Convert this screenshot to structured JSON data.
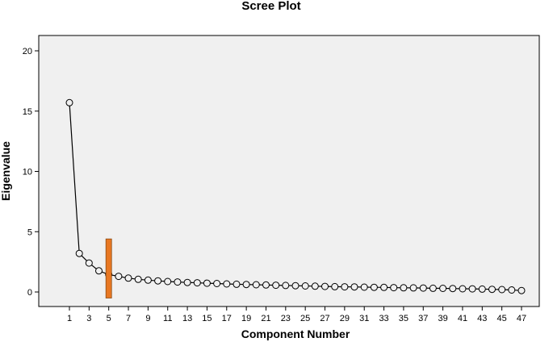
{
  "chart_data": {
    "type": "line",
    "title": "Scree Plot",
    "xlabel": "Component Number",
    "ylabel": "Eigenvalue",
    "xlim": [
      1,
      47
    ],
    "ylim": [
      0,
      20
    ],
    "yticks": [
      0,
      5,
      10,
      15,
      20
    ],
    "xticks": [
      1,
      3,
      5,
      7,
      9,
      11,
      13,
      15,
      17,
      19,
      21,
      23,
      25,
      27,
      29,
      31,
      33,
      35,
      37,
      39,
      41,
      43,
      45,
      47
    ],
    "grid": false,
    "legend": "none",
    "x": [
      1,
      2,
      3,
      4,
      5,
      6,
      7,
      8,
      9,
      10,
      11,
      12,
      13,
      14,
      15,
      16,
      17,
      18,
      19,
      20,
      21,
      22,
      23,
      24,
      25,
      26,
      27,
      28,
      29,
      30,
      31,
      32,
      33,
      34,
      35,
      36,
      37,
      38,
      39,
      40,
      41,
      42,
      43,
      44,
      45,
      46,
      47
    ],
    "values": [
      15.7,
      3.2,
      2.4,
      1.75,
      1.45,
      1.3,
      1.15,
      1.05,
      0.98,
      0.92,
      0.87,
      0.83,
      0.79,
      0.76,
      0.73,
      0.7,
      0.67,
      0.64,
      0.62,
      0.6,
      0.58,
      0.56,
      0.54,
      0.52,
      0.5,
      0.48,
      0.46,
      0.44,
      0.43,
      0.42,
      0.4,
      0.39,
      0.38,
      0.36,
      0.35,
      0.34,
      0.33,
      0.31,
      0.3,
      0.29,
      0.27,
      0.26,
      0.24,
      0.22,
      0.2,
      0.17,
      0.12
    ],
    "highlight": {
      "x": 5,
      "y_range": [
        -0.5,
        4.4
      ],
      "color": "#e87722"
    },
    "colors": {
      "plot_background": "#f0f0f0",
      "line": "#000000",
      "marker_fill": "#f0f0f0",
      "marker_stroke": "#000000"
    }
  }
}
